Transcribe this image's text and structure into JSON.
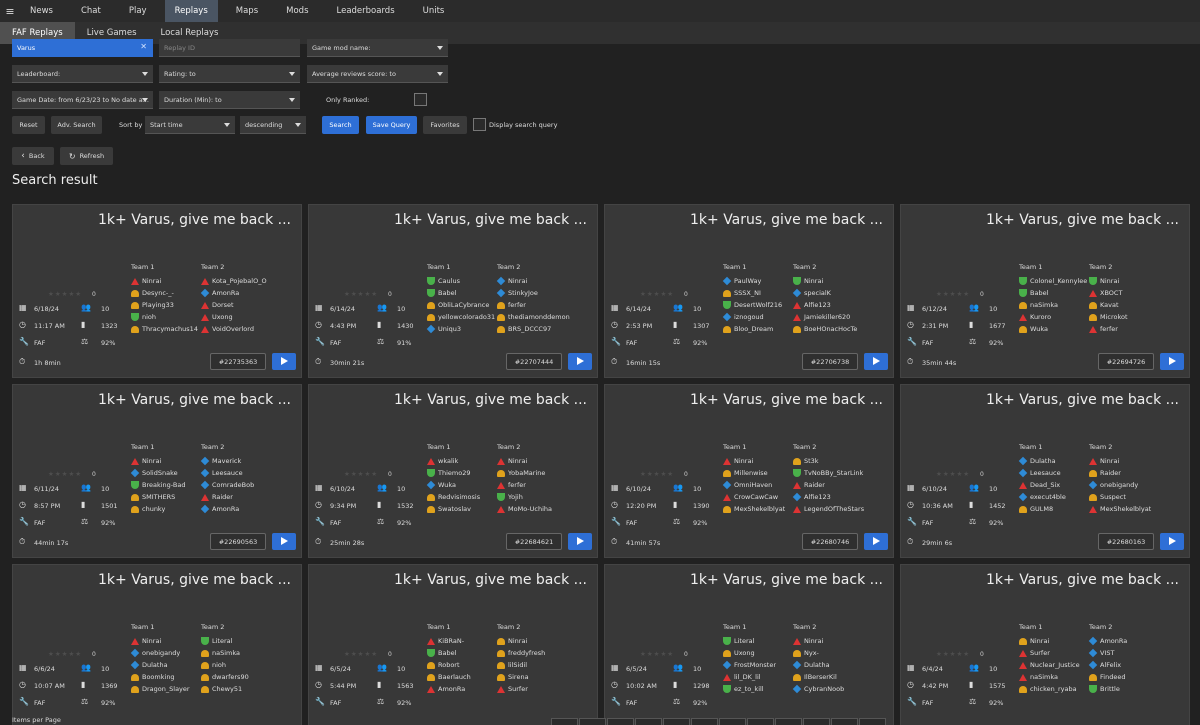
{
  "nav": {
    "tabs": [
      "News",
      "Chat",
      "Play",
      "Replays",
      "Maps",
      "Mods",
      "Leaderboards",
      "Units"
    ],
    "active": 3
  },
  "subnav": {
    "tabs": [
      "FAF Replays",
      "Live Games",
      "Local Replays"
    ],
    "active": 0
  },
  "filters": {
    "player_value": "Varus",
    "replay_id_placeholder": "Replay ID",
    "game_mod": "Game mod name:",
    "leaderboard": "Leaderboard:",
    "rating": "Rating:  to",
    "avg_review": "Average reviews score:  to",
    "game_date": "Game Date: from 6/23/23 to No date a...",
    "duration": "Duration (Min):  to",
    "only_ranked": "Only Ranked:",
    "reset": "Reset",
    "adv_search": "Adv. Search",
    "sort_by": "Sort by",
    "sort_field": "Start time",
    "sort_order": "descending",
    "search": "Search",
    "save_query": "Save Query",
    "favorites": "Favorites",
    "display_query": "Display search query"
  },
  "actions": {
    "back": "Back",
    "refresh": "Refresh"
  },
  "section_title": "Search result",
  "footer": {
    "items_per_page": "Items per Page"
  },
  "colors": {
    "accent": "#2e6fd6",
    "uef": "#2e8bd6",
    "cybran": "#d33",
    "aeon": "#49b14a",
    "seraphim": "#e0a21c"
  },
  "replays": [
    {
      "title": "1k+ Varus, give me back ...",
      "rating": "0",
      "date": "6/18/24",
      "players": "10",
      "time": "11:17 AM",
      "avg": "1323",
      "mod": "FAF",
      "quality": "92%",
      "duration": "1h 8min",
      "id": "#22735363",
      "team1": [
        {
          "n": "Ninrai",
          "f": "cyb"
        },
        {
          "n": "Desync-_-",
          "f": "sera"
        },
        {
          "n": "Playing33",
          "f": "sera"
        },
        {
          "n": "nioh",
          "f": "aeon"
        },
        {
          "n": "Thracymachus14",
          "f": "sera"
        }
      ],
      "team2": [
        {
          "n": "Kota_PojebalO_O",
          "f": "cyb"
        },
        {
          "n": "AmonRa",
          "f": "uef"
        },
        {
          "n": "Dorset",
          "f": "cyb"
        },
        {
          "n": "Uxong",
          "f": "cyb"
        },
        {
          "n": "VoidOverlord",
          "f": "cyb"
        }
      ]
    },
    {
      "title": "1k+ Varus, give me back ...",
      "rating": "0",
      "date": "6/14/24",
      "players": "10",
      "time": "4:43 PM",
      "avg": "1430",
      "mod": "FAF",
      "quality": "91%",
      "duration": "30min 21s",
      "id": "#22707444",
      "team1": [
        {
          "n": "Caulus",
          "f": "aeon"
        },
        {
          "n": "Babel",
          "f": "aeon"
        },
        {
          "n": "ObliLaCybrance",
          "f": "sera"
        },
        {
          "n": "yellowcolorado31",
          "f": "sera"
        },
        {
          "n": "Uniqu3",
          "f": "uef"
        }
      ],
      "team2": [
        {
          "n": "Ninrai",
          "f": "uef"
        },
        {
          "n": "StinkyJoe",
          "f": "uef"
        },
        {
          "n": "ferfer",
          "f": "sera"
        },
        {
          "n": "thediamonddemon",
          "f": "sera"
        },
        {
          "n": "BRS_DCCC97",
          "f": "sera"
        }
      ]
    },
    {
      "title": "1k+ Varus, give me back ...",
      "rating": "0",
      "date": "6/14/24",
      "players": "10",
      "time": "2:53 PM",
      "avg": "1307",
      "mod": "FAF",
      "quality": "92%",
      "duration": "16min 15s",
      "id": "#22706738",
      "team1": [
        {
          "n": "PaulWay",
          "f": "uef"
        },
        {
          "n": "SSSX_NI",
          "f": "sera"
        },
        {
          "n": "DesertWolf216",
          "f": "aeon"
        },
        {
          "n": "iznogoud",
          "f": "uef"
        },
        {
          "n": "Bloo_Dream",
          "f": "sera"
        }
      ],
      "team2": [
        {
          "n": "Ninrai",
          "f": "aeon"
        },
        {
          "n": "specialK",
          "f": "uef"
        },
        {
          "n": "Alfie123",
          "f": "cyb"
        },
        {
          "n": "Jamiekiller620",
          "f": "cyb"
        },
        {
          "n": "BoeHOnacHocTe",
          "f": "sera"
        }
      ]
    },
    {
      "title": "1k+ Varus, give me back ...",
      "rating": "0",
      "date": "6/12/24",
      "players": "10",
      "time": "2:31 PM",
      "avg": "1677",
      "mod": "FAF",
      "quality": "92%",
      "duration": "35min 44s",
      "id": "#22694726",
      "team1": [
        {
          "n": "Colonel_Kennylee",
          "f": "aeon"
        },
        {
          "n": "Babel",
          "f": "aeon"
        },
        {
          "n": "naSimka",
          "f": "sera"
        },
        {
          "n": "Kuroro",
          "f": "cyb"
        },
        {
          "n": "Wuka",
          "f": "sera"
        }
      ],
      "team2": [
        {
          "n": "Ninrai",
          "f": "aeon"
        },
        {
          "n": "XBOCT",
          "f": "cyb"
        },
        {
          "n": "Kavat",
          "f": "sera"
        },
        {
          "n": "Microkot",
          "f": "sera"
        },
        {
          "n": "ferfer",
          "f": "cyb"
        }
      ]
    },
    {
      "title": "1k+ Varus, give me back ...",
      "rating": "0",
      "date": "6/11/24",
      "players": "10",
      "time": "8:57 PM",
      "avg": "1501",
      "mod": "FAF",
      "quality": "92%",
      "duration": "44min 17s",
      "id": "#22690563",
      "team1": [
        {
          "n": "Ninrai",
          "f": "cyb"
        },
        {
          "n": "SolidSnake",
          "f": "uef"
        },
        {
          "n": "Breaking-Bad",
          "f": "aeon"
        },
        {
          "n": "SMITHERS",
          "f": "sera"
        },
        {
          "n": "chunky",
          "f": "sera"
        }
      ],
      "team2": [
        {
          "n": "Maverick",
          "f": "uef"
        },
        {
          "n": "Leesauce",
          "f": "uef"
        },
        {
          "n": "ComradeBob",
          "f": "uef"
        },
        {
          "n": "Raider",
          "f": "cyb"
        },
        {
          "n": "AmonRa",
          "f": "uef"
        }
      ]
    },
    {
      "title": "1k+ Varus, give me back ...",
      "rating": "0",
      "date": "6/10/24",
      "players": "10",
      "time": "9:34 PM",
      "avg": "1532",
      "mod": "FAF",
      "quality": "92%",
      "duration": "25min 28s",
      "id": "#22684621",
      "team1": [
        {
          "n": "wkalik",
          "f": "cyb"
        },
        {
          "n": "Thiemo29",
          "f": "aeon"
        },
        {
          "n": "Wuka",
          "f": "uef"
        },
        {
          "n": "Redvisimosis",
          "f": "sera"
        },
        {
          "n": "Swatoslav",
          "f": "sera"
        }
      ],
      "team2": [
        {
          "n": "Ninrai",
          "f": "cyb"
        },
        {
          "n": "YobaMarine",
          "f": "sera"
        },
        {
          "n": "ferfer",
          "f": "cyb"
        },
        {
          "n": "Yojih",
          "f": "aeon"
        },
        {
          "n": "MoMo-Uchiha",
          "f": "cyb"
        }
      ]
    },
    {
      "title": "1k+ Varus, give me back ...",
      "rating": "0",
      "date": "6/10/24",
      "players": "10",
      "time": "12:20 PM",
      "avg": "1390",
      "mod": "FAF",
      "quality": "92%",
      "duration": "41min 57s",
      "id": "#22680746",
      "team1": [
        {
          "n": "Ninrai",
          "f": "cyb"
        },
        {
          "n": "Millenwise",
          "f": "sera"
        },
        {
          "n": "OmniHaven",
          "f": "uef"
        },
        {
          "n": "CrowCawCaw",
          "f": "cyb"
        },
        {
          "n": "MexShekelblyat",
          "f": "sera"
        }
      ],
      "team2": [
        {
          "n": "St3k",
          "f": "sera"
        },
        {
          "n": "TvNoBBy_StarLink",
          "f": "aeon"
        },
        {
          "n": "Raider",
          "f": "cyb"
        },
        {
          "n": "Alfie123",
          "f": "uef"
        },
        {
          "n": "LegendOfTheStars",
          "f": "cyb"
        }
      ]
    },
    {
      "title": "1k+ Varus, give me back ...",
      "rating": "0",
      "date": "6/10/24",
      "players": "10",
      "time": "10:36 AM",
      "avg": "1452",
      "mod": "FAF",
      "quality": "92%",
      "duration": "29min 6s",
      "id": "#22680163",
      "team1": [
        {
          "n": "Dulatha",
          "f": "uef"
        },
        {
          "n": "Leesauce",
          "f": "uef"
        },
        {
          "n": "Dead_Six",
          "f": "cyb"
        },
        {
          "n": "execut4ble",
          "f": "uef"
        },
        {
          "n": "GULM8",
          "f": "sera"
        }
      ],
      "team2": [
        {
          "n": "Ninrai",
          "f": "cyb"
        },
        {
          "n": "Raider",
          "f": "sera"
        },
        {
          "n": "onebigandy",
          "f": "uef"
        },
        {
          "n": "Suspect",
          "f": "sera"
        },
        {
          "n": "MexShekelblyat",
          "f": "cyb"
        }
      ]
    },
    {
      "title": "1k+ Varus, give me back ...",
      "rating": "0",
      "date": "6/6/24",
      "players": "10",
      "time": "10:07 AM",
      "avg": "1369",
      "mod": "FAF",
      "quality": "92%",
      "duration": "",
      "id": "",
      "team1": [
        {
          "n": "Ninrai",
          "f": "cyb"
        },
        {
          "n": "onebigandy",
          "f": "uef"
        },
        {
          "n": "Dulatha",
          "f": "uef"
        },
        {
          "n": "Boomking",
          "f": "sera"
        },
        {
          "n": "Dragon_Slayer",
          "f": "sera"
        }
      ],
      "team2": [
        {
          "n": "Literal",
          "f": "aeon"
        },
        {
          "n": "naSimka",
          "f": "sera"
        },
        {
          "n": "nioh",
          "f": "sera"
        },
        {
          "n": "dwarfers90",
          "f": "sera"
        },
        {
          "n": "Chewy51",
          "f": "sera"
        }
      ]
    },
    {
      "title": "1k+ Varus, give me back ...",
      "rating": "0",
      "date": "6/5/24",
      "players": "10",
      "time": "5:44 PM",
      "avg": "1563",
      "mod": "FAF",
      "quality": "92%",
      "duration": "",
      "id": "",
      "team1": [
        {
          "n": "KiBRaN-",
          "f": "cyb"
        },
        {
          "n": "Babel",
          "f": "aeon"
        },
        {
          "n": "Robort",
          "f": "sera"
        },
        {
          "n": "Baerlauch",
          "f": "sera"
        },
        {
          "n": "AmonRa",
          "f": "cyb"
        }
      ],
      "team2": [
        {
          "n": "Ninrai",
          "f": "sera"
        },
        {
          "n": "freddyfresh",
          "f": "sera"
        },
        {
          "n": "lilSidil",
          "f": "sera"
        },
        {
          "n": "Sirena",
          "f": "sera"
        },
        {
          "n": "Surfer",
          "f": "cyb"
        }
      ]
    },
    {
      "title": "1k+ Varus, give me back ...",
      "rating": "0",
      "date": "6/5/24",
      "players": "10",
      "time": "10:02 AM",
      "avg": "1298",
      "mod": "FAF",
      "quality": "92%",
      "duration": "",
      "id": "",
      "team1": [
        {
          "n": "Literal",
          "f": "aeon"
        },
        {
          "n": "Uxong",
          "f": "sera"
        },
        {
          "n": "FrostMonster",
          "f": "uef"
        },
        {
          "n": "lil_DK_lil",
          "f": "cyb"
        },
        {
          "n": "ez_to_kill",
          "f": "aeon"
        }
      ],
      "team2": [
        {
          "n": "Ninrai",
          "f": "cyb"
        },
        {
          "n": "Nyx-",
          "f": "sera"
        },
        {
          "n": "Dulatha",
          "f": "uef"
        },
        {
          "n": "IlBerserKil",
          "f": "sera"
        },
        {
          "n": "CybranNoob",
          "f": "uef"
        }
      ]
    },
    {
      "title": "1k+ Varus, give me back ...",
      "rating": "0",
      "date": "6/4/24",
      "players": "10",
      "time": "4:42 PM",
      "avg": "1575",
      "mod": "FAF",
      "quality": "92%",
      "duration": "",
      "id": "",
      "team1": [
        {
          "n": "Ninrai",
          "f": "sera"
        },
        {
          "n": "Surfer",
          "f": "cyb"
        },
        {
          "n": "Nuclear_Justice",
          "f": "cyb"
        },
        {
          "n": "naSimka",
          "f": "cyb"
        },
        {
          "n": "chicken_ryaba",
          "f": "sera"
        }
      ],
      "team2": [
        {
          "n": "AmonRa",
          "f": "uef"
        },
        {
          "n": "VIST",
          "f": "uef"
        },
        {
          "n": "AlFelix",
          "f": "uef"
        },
        {
          "n": "Findeed",
          "f": "sera"
        },
        {
          "n": "Brittle",
          "f": "aeon"
        }
      ]
    }
  ]
}
